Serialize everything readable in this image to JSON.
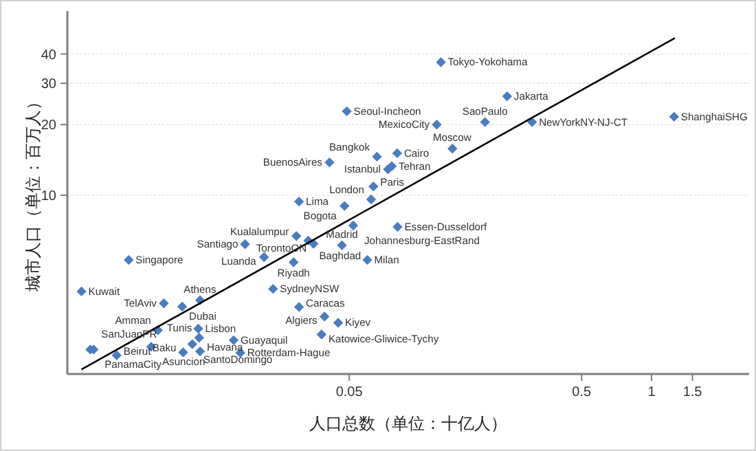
{
  "chart_data": {
    "type": "scatter",
    "xlabel": "人口总数（单位：十亿人）",
    "ylabel": "城市人口（单位：百万人）",
    "log": "xy",
    "grid": "y",
    "marker": "diamond",
    "xlim": [
      0.00306,
      2.63
    ],
    "ylim": [
      1.73,
      61
    ],
    "xticks": [
      0.05,
      0.5,
      1,
      1.5
    ],
    "yticks": [
      10,
      20,
      30,
      40
    ],
    "series": [
      {
        "type": "scatter",
        "color": "#4a7cc0",
        "x": [
          0.124,
          0.239,
          0.0488,
          0.119,
          0.192,
          0.306,
          1.25,
          0.0804,
          0.139,
          0.0658,
          0.0411,
          0.0762,
          0.0734,
          0.0635,
          0.0304,
          0.0621,
          0.0477,
          0.052,
          0.0807,
          0.0296,
          0.0333,
          0.0351,
          0.0178,
          0.0465,
          0.0215,
          0.0288,
          0.0598,
          0.00562,
          0.00352,
          0.0235,
          0.00796,
          0.00955,
          0.0114,
          0.0304,
          0.0391,
          0.0448,
          0.00751,
          0.0112,
          0.0113,
          0.0159,
          0.038,
          0.00397,
          0.00384,
          0.00702,
          0.01056,
          0.00499,
          0.00964,
          0.0114,
          0.017
        ],
        "values": [
          36.9,
          26.4,
          22.8,
          20.0,
          20.5,
          20.5,
          21.6,
          15.1,
          15.8,
          14.6,
          13.8,
          13.3,
          12.9,
          10.9,
          9.4,
          9.6,
          9.0,
          7.43,
          7.33,
          6.7,
          6.41,
          6.21,
          6.18,
          6.12,
          5.45,
          5.18,
          5.3,
          5.3,
          3.89,
          3.99,
          3.46,
          3.35,
          3.57,
          3.34,
          3.04,
          2.86,
          2.66,
          2.7,
          2.47,
          2.41,
          2.55,
          2.2,
          2.2,
          2.26,
          2.32,
          2.08,
          2.14,
          2.16,
          2.13
        ]
      },
      {
        "type": "line",
        "color": "#000000",
        "marker": "none",
        "x": [
          0.00352,
          1.26
        ],
        "values": [
          1.81,
          46.8
        ]
      }
    ],
    "annotations": [
      {
        "text": "Tokyo-Yokohama",
        "x": 0.124,
        "y": 36.9
      },
      {
        "text": "Jakarta",
        "x": 0.239,
        "y": 26.4
      },
      {
        "text": "Seoul-Incheon",
        "x": 0.0488,
        "y": 22.8
      },
      {
        "text": "MexicoCity",
        "x": 0.119,
        "y": 20.0
      },
      {
        "text": "SaoPaulo",
        "x": 0.192,
        "y": 20.5
      },
      {
        "text": "NewYorkNY-NJ-CT",
        "x": 0.306,
        "y": 20.5
      },
      {
        "text": "ShanghaiSHG",
        "x": 1.25,
        "y": 21.6
      },
      {
        "text": "Cairo",
        "x": 0.0804,
        "y": 15.1
      },
      {
        "text": "Moscow",
        "x": 0.139,
        "y": 15.8
      },
      {
        "text": "Bangkok",
        "x": 0.0658,
        "y": 14.6
      },
      {
        "text": "BuenosAires",
        "x": 0.0411,
        "y": 13.8
      },
      {
        "text": "Tehran",
        "x": 0.0762,
        "y": 13.3
      },
      {
        "text": "Istanbul",
        "x": 0.0734,
        "y": 12.9
      },
      {
        "text": "Paris",
        "x": 0.0635,
        "y": 10.9
      },
      {
        "text": "Lima",
        "x": 0.0304,
        "y": 9.4
      },
      {
        "text": "London",
        "x": 0.0621,
        "y": 9.6
      },
      {
        "text": "Bogota",
        "x": 0.0477,
        "y": 9.0
      },
      {
        "text": "Johannesburg-EastRand",
        "x": 0.052,
        "y": 7.43
      },
      {
        "text": "Essen-Dusseldorf",
        "x": 0.0807,
        "y": 7.33
      },
      {
        "text": "Kualalumpur",
        "x": 0.0296,
        "y": 6.7
      },
      {
        "text": "Baghdad",
        "x": 0.0333,
        "y": 6.41
      },
      {
        "text": "TorontoON",
        "x": 0.0351,
        "y": 6.21
      },
      {
        "text": "Santiago",
        "x": 0.0178,
        "y": 6.18
      },
      {
        "text": "Madrid",
        "x": 0.0465,
        "y": 6.12
      },
      {
        "text": "Luanda",
        "x": 0.0215,
        "y": 5.45
      },
      {
        "text": "Riyadh",
        "x": 0.0288,
        "y": 5.18
      },
      {
        "text": "Milan",
        "x": 0.0598,
        "y": 5.3
      },
      {
        "text": "Singapore",
        "x": 0.00562,
        "y": 5.3
      },
      {
        "text": "Kuwait",
        "x": 0.00352,
        "y": 3.89
      },
      {
        "text": "SydneyNSW",
        "x": 0.0235,
        "y": 3.99
      },
      {
        "text": "TelAviv",
        "x": 0.00796,
        "y": 3.46
      },
      {
        "text": "Dubai",
        "x": 0.00955,
        "y": 3.35
      },
      {
        "text": "Athens",
        "x": 0.0114,
        "y": 3.57
      },
      {
        "text": "Caracas",
        "x": 0.0304,
        "y": 3.34
      },
      {
        "text": "Algiers",
        "x": 0.0391,
        "y": 3.04
      },
      {
        "text": "Kiyev",
        "x": 0.0448,
        "y": 2.86
      },
      {
        "text": "Amman",
        "x": 0.00751,
        "y": 2.66
      },
      {
        "text": "Lisbon",
        "x": 0.0112,
        "y": 2.7
      },
      {
        "text": "Tunis",
        "x": 0.0113,
        "y": 2.47
      },
      {
        "text": "Guayaquil",
        "x": 0.0159,
        "y": 2.41
      },
      {
        "text": "Katowice-Gliwice-Tychy",
        "x": 0.038,
        "y": 2.55
      },
      {
        "text": "PanamaCity",
        "x": 0.00397,
        "y": 2.2
      },
      {
        "text": "SanJuanPR",
        "x": 0.00384,
        "y": 2.2
      },
      {
        "text": "Asuncion",
        "x": 0.00702,
        "y": 2.26
      },
      {
        "text": "SantoDomingo",
        "x": 0.01056,
        "y": 2.32
      },
      {
        "text": "Beirut",
        "x": 0.00499,
        "y": 2.08
      },
      {
        "text": "Baku",
        "x": 0.00964,
        "y": 2.14
      },
      {
        "text": "Havana",
        "x": 0.0114,
        "y": 2.16
      },
      {
        "text": "Rotterdam-Hague",
        "x": 0.017,
        "y": 2.13
      }
    ]
  }
}
